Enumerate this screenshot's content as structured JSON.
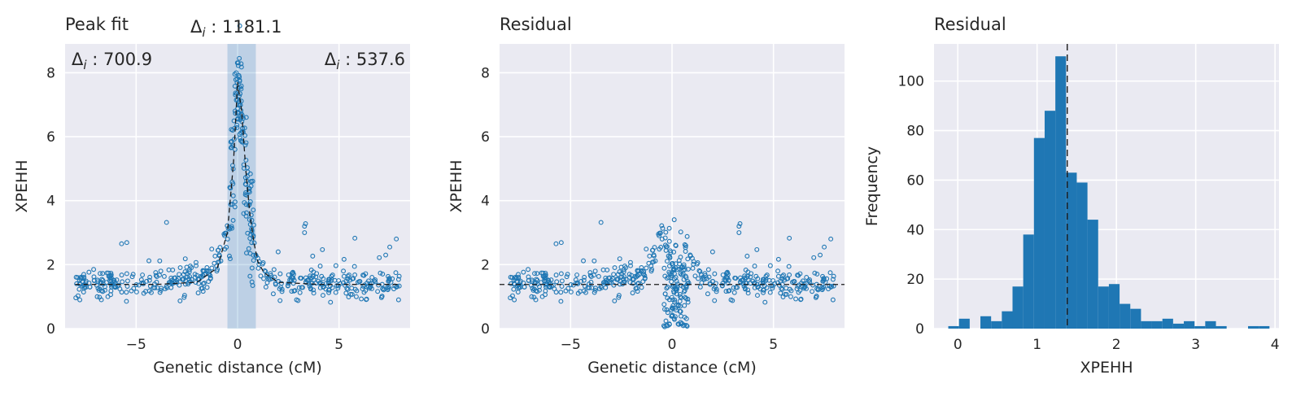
{
  "chart_data": [
    {
      "type": "scatter",
      "title": "Peak fit",
      "xlabel": "Genetic distance (cM)",
      "ylabel": "XPEHH",
      "xlim": [
        -8.5,
        8.5
      ],
      "ylim": [
        0,
        8.9
      ],
      "xticks": [
        -5,
        0,
        5
      ],
      "xtick_labels": [
        "−5",
        "0",
        "5"
      ],
      "yticks": [
        0,
        2,
        4,
        6,
        8
      ],
      "ytick_labels": [
        "0",
        "2",
        "4",
        "6",
        "8"
      ],
      "grid": true,
      "highlight_span": [
        -0.5,
        0.9
      ],
      "baseline": 1.38,
      "fit_curve": {
        "x": [
          -8.0,
          -4.0,
          -2.0,
          -1.0,
          -0.5,
          -0.2,
          0.0,
          0.2,
          0.4,
          0.6,
          0.8,
          1.0,
          1.3,
          2.0,
          4.0,
          8.0
        ],
        "y": [
          1.38,
          1.38,
          1.45,
          1.9,
          3.0,
          5.2,
          7.7,
          6.8,
          5.0,
          3.6,
          2.7,
          2.1,
          1.75,
          1.45,
          1.38,
          1.38
        ]
      },
      "annotations": [
        {
          "label": "Δ",
          "subscript": "i",
          "text": " : 700.9"
        },
        {
          "label": "Δ",
          "subscript": "i",
          "text": " : 1181.1"
        },
        {
          "label": "Δ",
          "subscript": "i",
          "text": " : 537.6"
        }
      ],
      "series": [
        {
          "points_generated": true,
          "count": 600,
          "x_range": [
            -8,
            8
          ]
        }
      ]
    },
    {
      "type": "scatter",
      "title": "Residual",
      "xlabel": "Genetic distance (cM)",
      "ylabel": "XPEHH",
      "xlim": [
        -8.5,
        8.5
      ],
      "ylim": [
        0,
        8.9
      ],
      "xticks": [
        -5,
        0,
        5
      ],
      "xtick_labels": [
        "−5",
        "0",
        "5"
      ],
      "yticks": [
        0,
        2,
        4,
        6,
        8
      ],
      "ytick_labels": [
        "0",
        "2",
        "4",
        "6",
        "8"
      ],
      "grid": true,
      "baseline": 1.38
    },
    {
      "type": "bar",
      "title": "Residual",
      "xlabel": "XPEHH",
      "ylabel": "Frequency",
      "xlim": [
        -0.3,
        4.05
      ],
      "ylim": [
        0,
        115
      ],
      "xticks": [
        0,
        1,
        2,
        3,
        4
      ],
      "xtick_labels": [
        "0",
        "1",
        "2",
        "3",
        "4"
      ],
      "yticks": [
        0,
        20,
        40,
        60,
        80,
        100
      ],
      "ytick_labels": [
        "0",
        "20",
        "40",
        "60",
        "80",
        "100"
      ],
      "grid": true,
      "vline": 1.38,
      "bin_start": -0.12,
      "bin_width": 0.135,
      "values": [
        1,
        4,
        0,
        5,
        3,
        7,
        17,
        38,
        77,
        88,
        110,
        63,
        59,
        44,
        17,
        18,
        10,
        8,
        3,
        3,
        4,
        2,
        3,
        1,
        3,
        1,
        0,
        0,
        1,
        1
      ]
    }
  ]
}
